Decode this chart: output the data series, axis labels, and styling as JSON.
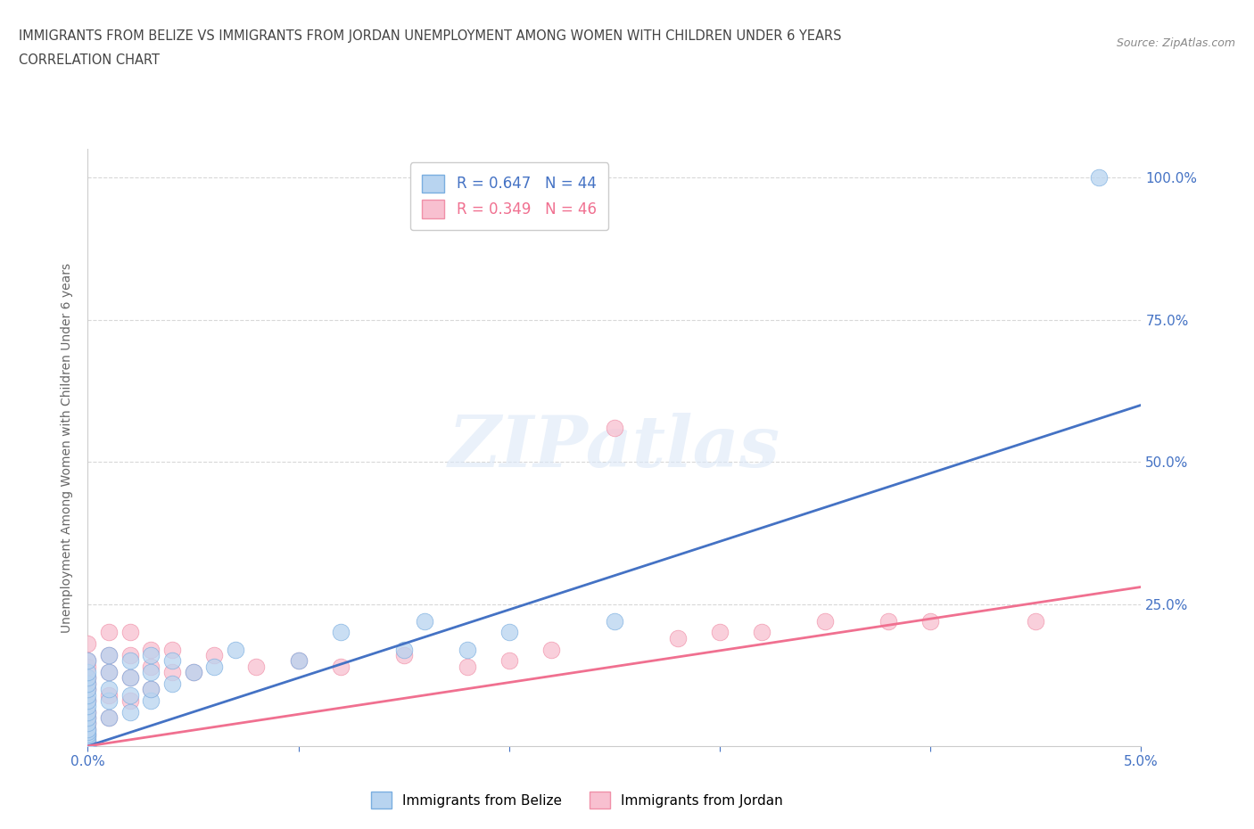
{
  "title_line1": "IMMIGRANTS FROM BELIZE VS IMMIGRANTS FROM JORDAN UNEMPLOYMENT AMONG WOMEN WITH CHILDREN UNDER 6 YEARS",
  "title_line2": "CORRELATION CHART",
  "source_text": "Source: ZipAtlas.com",
  "ylabel": "Unemployment Among Women with Children Under 6 years",
  "xlim": [
    0.0,
    0.05
  ],
  "ylim": [
    0.0,
    1.05
  ],
  "xticks": [
    0.0,
    0.01,
    0.02,
    0.03,
    0.04,
    0.05
  ],
  "xticklabels": [
    "0.0%",
    "",
    "",
    "",
    "",
    "5.0%"
  ],
  "yticks": [
    0.0,
    0.25,
    0.5,
    0.75,
    1.0
  ],
  "yticklabels": [
    "",
    "25.0%",
    "50.0%",
    "75.0%",
    "100.0%"
  ],
  "watermark": "ZIPatlas",
  "belize_color": "#b8d4f0",
  "belize_edge_color": "#7aaee0",
  "jordan_color": "#f8c0d0",
  "jordan_edge_color": "#f090a8",
  "belize_line_color": "#4472c4",
  "jordan_line_color": "#f07090",
  "R_belize": 0.647,
  "N_belize": 44,
  "R_jordan": 0.349,
  "N_jordan": 46,
  "belize_scatter_x": [
    0.0,
    0.0,
    0.0,
    0.0,
    0.0,
    0.0,
    0.0,
    0.0,
    0.0,
    0.0,
    0.0,
    0.0,
    0.0,
    0.0,
    0.0,
    0.0,
    0.0,
    0.0,
    0.001,
    0.001,
    0.001,
    0.001,
    0.001,
    0.002,
    0.002,
    0.002,
    0.002,
    0.003,
    0.003,
    0.003,
    0.003,
    0.004,
    0.004,
    0.005,
    0.006,
    0.007,
    0.01,
    0.012,
    0.015,
    0.016,
    0.018,
    0.02,
    0.025,
    0.048
  ],
  "belize_scatter_y": [
    0.0,
    0.005,
    0.01,
    0.015,
    0.02,
    0.025,
    0.03,
    0.04,
    0.05,
    0.06,
    0.07,
    0.08,
    0.09,
    0.1,
    0.11,
    0.12,
    0.13,
    0.15,
    0.05,
    0.08,
    0.1,
    0.13,
    0.16,
    0.06,
    0.09,
    0.12,
    0.15,
    0.08,
    0.1,
    0.13,
    0.16,
    0.11,
    0.15,
    0.13,
    0.14,
    0.17,
    0.15,
    0.2,
    0.17,
    0.22,
    0.17,
    0.2,
    0.22,
    1.0
  ],
  "jordan_scatter_x": [
    0.0,
    0.0,
    0.0,
    0.0,
    0.0,
    0.0,
    0.0,
    0.0,
    0.0,
    0.0,
    0.0,
    0.0,
    0.0,
    0.0,
    0.0,
    0.001,
    0.001,
    0.001,
    0.001,
    0.001,
    0.002,
    0.002,
    0.002,
    0.002,
    0.003,
    0.003,
    0.003,
    0.004,
    0.004,
    0.005,
    0.006,
    0.008,
    0.01,
    0.012,
    0.015,
    0.018,
    0.02,
    0.022,
    0.025,
    0.028,
    0.03,
    0.032,
    0.035,
    0.038,
    0.04,
    0.045
  ],
  "jordan_scatter_y": [
    0.0,
    0.005,
    0.01,
    0.02,
    0.03,
    0.04,
    0.05,
    0.06,
    0.08,
    0.1,
    0.11,
    0.12,
    0.14,
    0.15,
    0.18,
    0.05,
    0.09,
    0.13,
    0.16,
    0.2,
    0.08,
    0.12,
    0.16,
    0.2,
    0.1,
    0.14,
    0.17,
    0.13,
    0.17,
    0.13,
    0.16,
    0.14,
    0.15,
    0.14,
    0.16,
    0.14,
    0.15,
    0.17,
    0.56,
    0.19,
    0.2,
    0.2,
    0.22,
    0.22,
    0.22,
    0.22
  ],
  "belize_line_x": [
    0.0,
    0.05
  ],
  "belize_line_y": [
    0.0,
    0.6
  ],
  "jordan_line_x": [
    0.0,
    0.05
  ],
  "jordan_line_y": [
    0.0,
    0.28
  ],
  "background_color": "#ffffff",
  "grid_color": "#d8d8d8"
}
